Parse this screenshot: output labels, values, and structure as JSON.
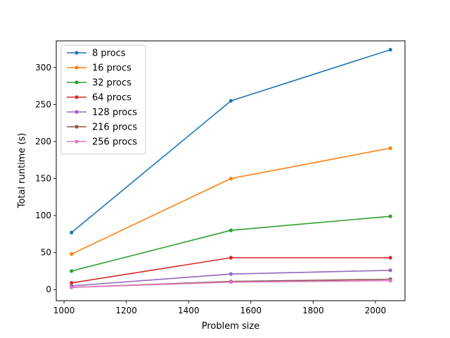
{
  "chart_data": {
    "type": "line",
    "xlabel": "Problem size",
    "ylabel": "Total runtime (s)",
    "xlim": [
      975,
      2095
    ],
    "ylim": [
      -15,
      336
    ],
    "xticks": [
      1000,
      1200,
      1400,
      1600,
      1800,
      2000
    ],
    "yticks": [
      0,
      50,
      100,
      150,
      200,
      250,
      300
    ],
    "xtick_labels": [
      "1000",
      "1200",
      "1400",
      "1600",
      "1800",
      "2000"
    ],
    "ytick_labels": [
      "0",
      "50",
      "100",
      "150",
      "200",
      "250",
      "300"
    ],
    "grid": false,
    "legend_position": "top-left",
    "x": [
      1024,
      1536,
      2048
    ],
    "series": [
      {
        "name": "8 procs",
        "values": [
          77,
          255,
          324
        ],
        "color": "#1f77b4"
      },
      {
        "name": "16 procs",
        "values": [
          48,
          150,
          191
        ],
        "color": "#ff7f0e"
      },
      {
        "name": "32 procs",
        "values": [
          25,
          80,
          99
        ],
        "color": "#2ca02c"
      },
      {
        "name": "64 procs",
        "values": [
          9,
          43,
          43
        ],
        "color": "#d62728"
      },
      {
        "name": "128 procs",
        "values": [
          5,
          21,
          26
        ],
        "color": "#9467bd"
      },
      {
        "name": "216 procs",
        "values": [
          3,
          11,
          14
        ],
        "color": "#8c564b"
      },
      {
        "name": "256 procs",
        "values": [
          3,
          10,
          12
        ],
        "color": "#e377c2"
      }
    ]
  }
}
